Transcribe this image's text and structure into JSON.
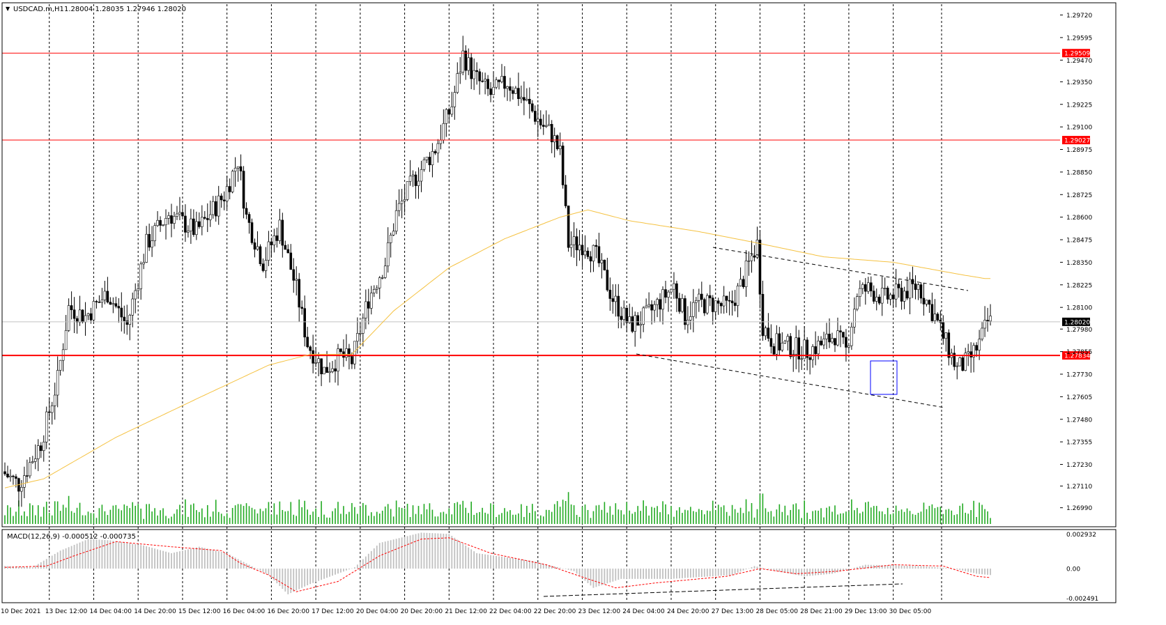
{
  "header": {
    "symbol_label": "USDCAD.m,H1",
    "ohlc_label": "1.28004 1.28035 1.27946 1.28020"
  },
  "macd_panel": {
    "label": "MACD(12,26,9) -0.000512 -0.000735"
  },
  "colors": {
    "bull": "#22aa22",
    "bear": "#000000",
    "hline": "#ff0000",
    "ma": "#f5c242",
    "macd_hist": "#c0c0c0",
    "macd_signal": "#ff0000",
    "volume": "#22aa22",
    "box": "#0000ff"
  },
  "chart_data": [
    {
      "type": "candlestick",
      "title": "USDCAD.m,H1",
      "ylim": [
        1.269,
        1.2978
      ],
      "y_ticks": [
        "1.29720",
        "1.29595",
        "1.29470",
        "1.29350",
        "1.29225",
        "1.29100",
        "1.28975",
        "1.28850",
        "1.28725",
        "1.28600",
        "1.28475",
        "1.28350",
        "1.28225",
        "1.28100",
        "1.27980",
        "1.27855",
        "1.27730",
        "1.27605",
        "1.27480",
        "1.27355",
        "1.27230",
        "1.27110",
        "1.26990"
      ],
      "x_labels": [
        "10 Dec 2021",
        "13 Dec 12:00",
        "14 Dec 04:00",
        "14 Dec 20:00",
        "15 Dec 12:00",
        "16 Dec 04:00",
        "16 Dec 20:00",
        "17 Dec 12:00",
        "20 Dec 04:00",
        "20 Dec 20:00",
        "21 Dec 12:00",
        "22 Dec 04:00",
        "22 Dec 20:00",
        "23 Dec 12:00",
        "24 Dec 04:00",
        "24 Dec 20:00",
        "27 Dec 13:00",
        "28 Dec 05:00",
        "28 Dec 21:00",
        "29 Dec 13:00",
        "30 Dec 05:00"
      ],
      "price_path": [
        [
          0,
          1.2719
        ],
        [
          6,
          1.2712
        ],
        [
          14,
          1.2735
        ],
        [
          20,
          1.277
        ],
        [
          24,
          1.281
        ],
        [
          30,
          1.2805
        ],
        [
          38,
          1.2818
        ],
        [
          45,
          1.28
        ],
        [
          52,
          1.2845
        ],
        [
          60,
          1.2862
        ],
        [
          70,
          1.2852
        ],
        [
          80,
          1.2872
        ],
        [
          85,
          1.2892
        ],
        [
          88,
          1.286
        ],
        [
          94,
          1.2835
        ],
        [
          100,
          1.2855
        ],
        [
          106,
          1.282
        ],
        [
          110,
          1.279
        ],
        [
          116,
          1.2775
        ],
        [
          122,
          1.2783
        ],
        [
          126,
          1.278
        ],
        [
          132,
          1.2815
        ],
        [
          138,
          1.2835
        ],
        [
          142,
          1.2862
        ],
        [
          148,
          1.288
        ],
        [
          156,
          1.2898
        ],
        [
          162,
          1.2922
        ],
        [
          166,
          1.295
        ],
        [
          170,
          1.2938
        ],
        [
          176,
          1.2928
        ],
        [
          182,
          1.2935
        ],
        [
          188,
          1.2925
        ],
        [
          194,
          1.2912
        ],
        [
          198,
          1.2906
        ],
        [
          201,
          1.2895
        ],
        [
          204,
          1.2845
        ],
        [
          210,
          1.2845
        ],
        [
          214,
          1.2838
        ],
        [
          220,
          1.2815
        ],
        [
          226,
          1.28
        ],
        [
          232,
          1.2805
        ],
        [
          238,
          1.2815
        ],
        [
          242,
          1.2822
        ],
        [
          246,
          1.2805
        ],
        [
          250,
          1.2812
        ],
        [
          256,
          1.2812
        ],
        [
          262,
          1.281
        ],
        [
          266,
          1.2822
        ],
        [
          270,
          1.2838
        ],
        [
          272,
          1.2845
        ],
        [
          274,
          1.28
        ],
        [
          278,
          1.279
        ],
        [
          284,
          1.2788
        ],
        [
          290,
          1.2786
        ],
        [
          296,
          1.279
        ],
        [
          300,
          1.2795
        ],
        [
          304,
          1.2786
        ],
        [
          308,
          1.2818
        ],
        [
          312,
          1.282
        ],
        [
          318,
          1.2815
        ],
        [
          324,
          1.2818
        ],
        [
          330,
          1.2822
        ],
        [
          336,
          1.2805
        ],
        [
          340,
          1.279
        ],
        [
          344,
          1.2776
        ],
        [
          348,
          1.278
        ],
        [
          352,
          1.279
        ],
        [
          355,
          1.2802
        ]
      ],
      "ma_path": [
        [
          0,
          1.271
        ],
        [
          14,
          1.2715
        ],
        [
          40,
          1.2738
        ],
        [
          70,
          1.276
        ],
        [
          95,
          1.2778
        ],
        [
          110,
          1.2784
        ],
        [
          125,
          1.2784
        ],
        [
          140,
          1.2808
        ],
        [
          160,
          1.2832
        ],
        [
          180,
          1.2848
        ],
        [
          200,
          1.286
        ],
        [
          210,
          1.2864
        ],
        [
          225,
          1.2858
        ],
        [
          250,
          1.2852
        ],
        [
          270,
          1.2846
        ],
        [
          295,
          1.2838
        ],
        [
          320,
          1.2835
        ],
        [
          345,
          1.2828
        ],
        [
          353,
          1.2826
        ]
      ],
      "horizontal_levels": [
        {
          "price": 1.29509,
          "label": "1.29509"
        },
        {
          "price": 1.29027,
          "label": "1.29027"
        },
        {
          "price": 1.27834,
          "label": "1.27834"
        }
      ],
      "current_price": {
        "price": 1.2802,
        "label": "1.28020"
      }
    },
    {
      "type": "bar",
      "title": "MACD(12,26,9) -0.000512 -0.000735",
      "ylim": [
        -0.002491,
        0.002932
      ],
      "y_ticks": [
        "0.002932",
        "0.00",
        "-0.002491"
      ],
      "macd_path": [
        [
          0,
          0.0002
        ],
        [
          10,
          0.0001
        ],
        [
          20,
          0.0014
        ],
        [
          30,
          0.0023
        ],
        [
          38,
          0.0022
        ],
        [
          50,
          0.0018
        ],
        [
          60,
          0.0012
        ],
        [
          70,
          0.0017
        ],
        [
          80,
          0.0012
        ],
        [
          95,
          -0.0005
        ],
        [
          102,
          -0.002
        ],
        [
          110,
          -0.0012
        ],
        [
          126,
          0.0001
        ],
        [
          135,
          0.002
        ],
        [
          150,
          0.0028
        ],
        [
          160,
          0.0027
        ],
        [
          170,
          0.0012
        ],
        [
          190,
          0.0006
        ],
        [
          205,
          -0.0002
        ],
        [
          212,
          -0.0015
        ],
        [
          222,
          -0.0008
        ],
        [
          240,
          -0.0008
        ],
        [
          262,
          -0.0005
        ],
        [
          270,
          0.0002
        ],
        [
          278,
          -0.0002
        ],
        [
          288,
          -0.0006
        ],
        [
          298,
          -0.0004
        ],
        [
          310,
          0.0003
        ],
        [
          330,
          0.0002
        ],
        [
          342,
          0.0
        ],
        [
          350,
          -0.0004
        ],
        [
          355,
          -0.0005
        ]
      ],
      "signal_path": [
        [
          0,
          0.0001
        ],
        [
          15,
          0.0002
        ],
        [
          25,
          0.001
        ],
        [
          40,
          0.0021
        ],
        [
          60,
          0.0017
        ],
        [
          78,
          0.0014
        ],
        [
          85,
          0.0004
        ],
        [
          95,
          -0.0005
        ],
        [
          105,
          -0.0018
        ],
        [
          120,
          -0.001
        ],
        [
          135,
          0.001
        ],
        [
          150,
          0.0023
        ],
        [
          160,
          0.0024
        ],
        [
          175,
          0.0012
        ],
        [
          195,
          0.0003
        ],
        [
          210,
          -0.0008
        ],
        [
          220,
          -0.0015
        ],
        [
          235,
          -0.0011
        ],
        [
          260,
          -0.0006
        ],
        [
          272,
          0.0
        ],
        [
          285,
          -0.0004
        ],
        [
          300,
          -0.0002
        ],
        [
          320,
          0.0003
        ],
        [
          338,
          0.0002
        ],
        [
          350,
          -0.0006
        ],
        [
          355,
          -0.0007
        ]
      ]
    }
  ]
}
